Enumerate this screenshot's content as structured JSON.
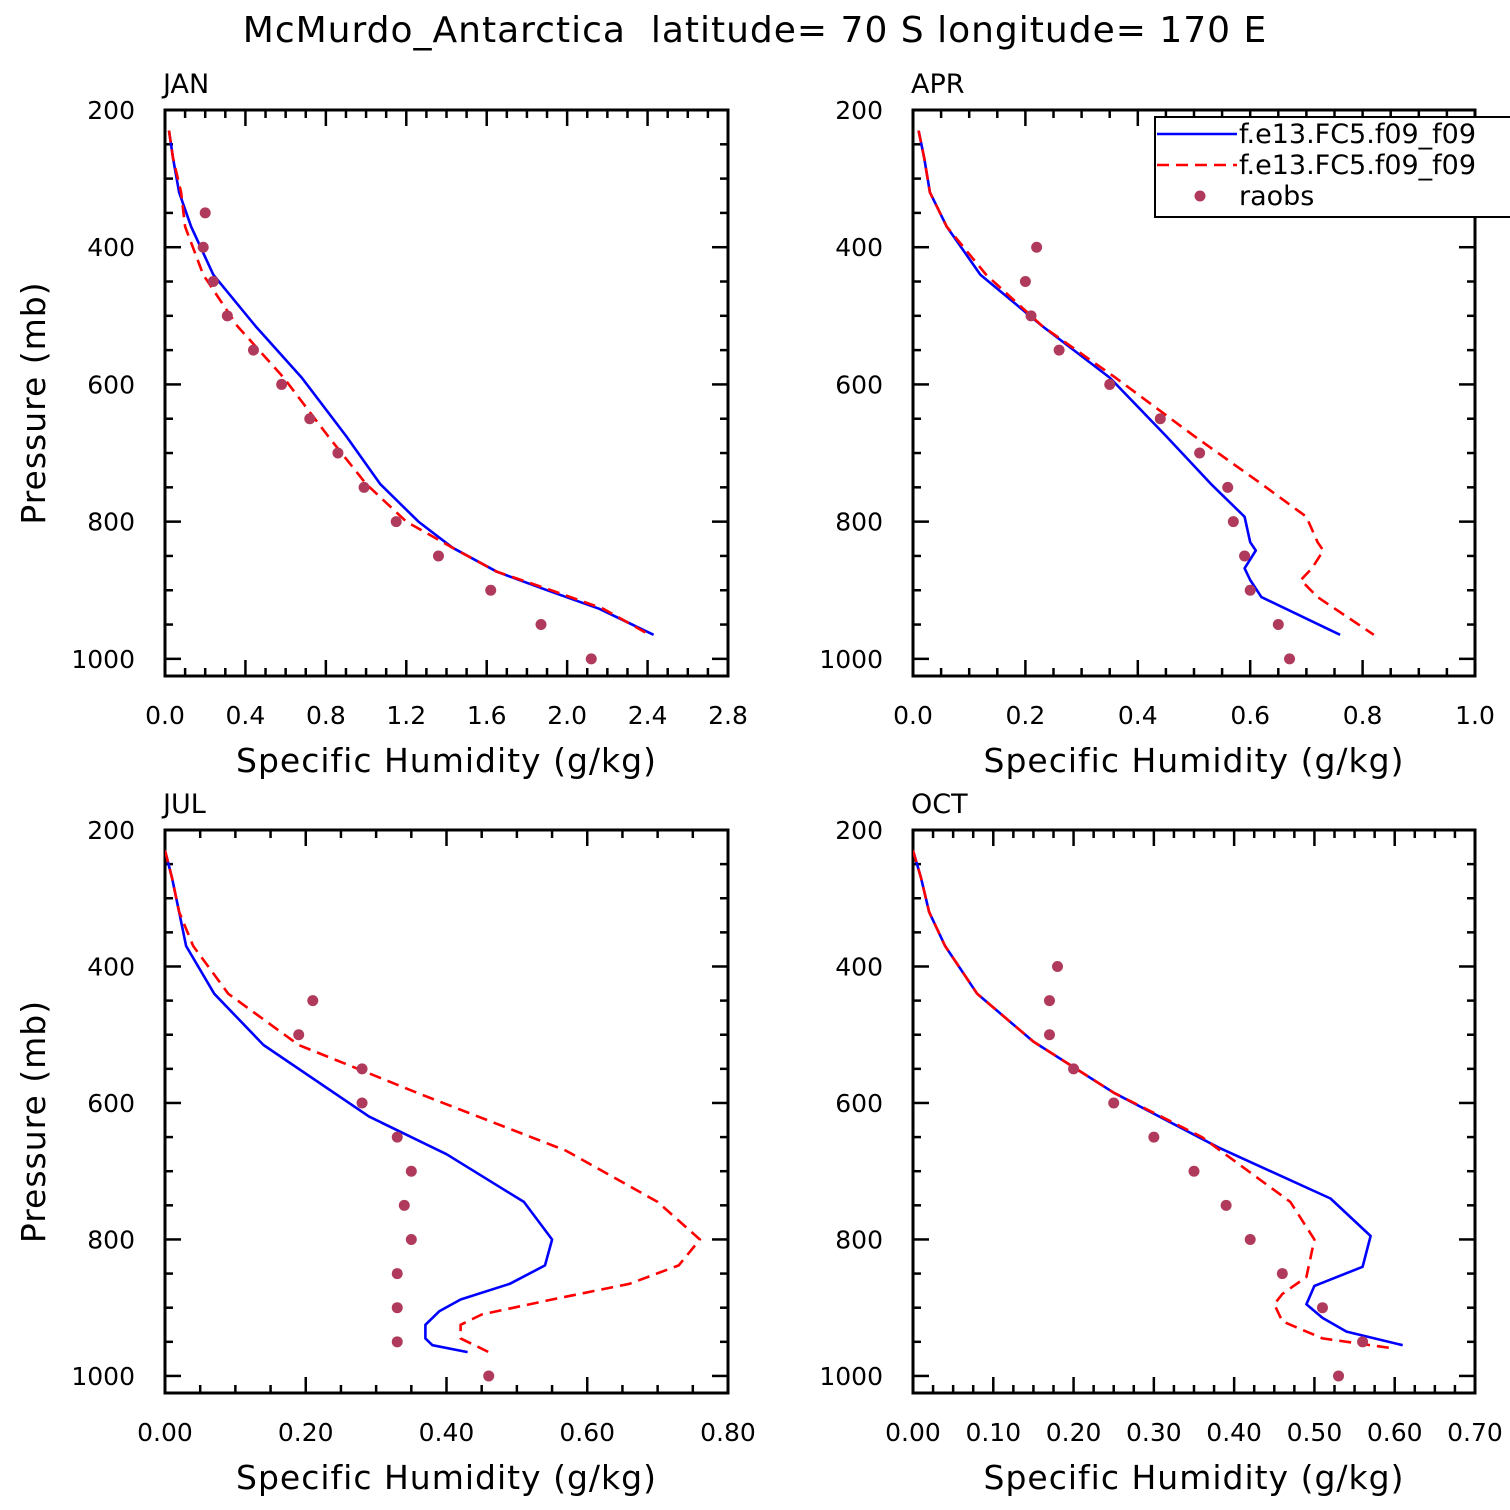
{
  "title": "McMurdo_Antarctica  latitude= 70 S longitude= 170 E",
  "legend": {
    "position": "top-right of APR panel",
    "entries": [
      {
        "label": "f.e13.FC5.f09_f09",
        "style": "solid",
        "color": "#0000ff"
      },
      {
        "label": "f.e13.FC5.f09_f09",
        "style": "dashed",
        "color": "#ff0000"
      },
      {
        "label": "raobs",
        "style": "dots",
        "color": "#b03a5b"
      }
    ]
  },
  "chart_data": [
    {
      "type": "line",
      "title": "JAN",
      "xlabel": "Specific Humidity (g/kg)",
      "ylabel": "Pressure (mb)",
      "xlim": [
        0,
        2.8
      ],
      "ylim": [
        1000,
        200
      ],
      "xticks": [
        "0.0",
        "0.4",
        "0.8",
        "1.2",
        "1.6",
        "2.0",
        "2.4",
        "2.8"
      ],
      "yticks": [
        "200",
        "400",
        "600",
        "800",
        "1000"
      ],
      "series": [
        {
          "name": "f.e13.FC5.f09_f09",
          "color": "#0000ff",
          "dash": false,
          "points": [
            [
              0.02,
              230
            ],
            [
              0.04,
              270
            ],
            [
              0.07,
              320
            ],
            [
              0.13,
              370
            ],
            [
              0.24,
              440
            ],
            [
              0.45,
              515
            ],
            [
              0.68,
              590
            ],
            [
              0.9,
              675
            ],
            [
              1.07,
              745
            ],
            [
              1.26,
              800
            ],
            [
              1.43,
              838
            ],
            [
              1.65,
              873
            ],
            [
              1.9,
              900
            ],
            [
              2.16,
              927
            ],
            [
              2.43,
              965
            ]
          ]
        },
        {
          "name": "f.e13.FC5.f09_f09",
          "color": "#ff0000",
          "dash": true,
          "points": [
            [
              0.02,
              230
            ],
            [
              0.04,
              270
            ],
            [
              0.08,
              320
            ],
            [
              0.1,
              370
            ],
            [
              0.19,
              440
            ],
            [
              0.36,
              515
            ],
            [
              0.59,
              590
            ],
            [
              0.81,
              675
            ],
            [
              1.0,
              745
            ],
            [
              1.2,
              800
            ],
            [
              1.43,
              838
            ],
            [
              1.65,
              873
            ],
            [
              1.92,
              900
            ],
            [
              2.18,
              927
            ],
            [
              2.41,
              965
            ]
          ]
        },
        {
          "name": "raobs",
          "color": "#b03a5b",
          "marker": "dot",
          "points": [
            [
              0.2,
              350
            ],
            [
              0.19,
              400
            ],
            [
              0.24,
              450
            ],
            [
              0.31,
              500
            ],
            [
              0.44,
              550
            ],
            [
              0.58,
              600
            ],
            [
              0.72,
              650
            ],
            [
              0.86,
              700
            ],
            [
              0.99,
              750
            ],
            [
              1.15,
              800
            ],
            [
              1.36,
              850
            ],
            [
              1.62,
              900
            ],
            [
              1.87,
              950
            ],
            [
              2.12,
              1000
            ]
          ]
        }
      ]
    },
    {
      "type": "line",
      "title": "APR",
      "xlabel": "Specific Humidity (g/kg)",
      "ylabel": "",
      "xlim": [
        0,
        1.0
      ],
      "ylim": [
        1000,
        200
      ],
      "xticks": [
        "0.0",
        "0.2",
        "0.4",
        "0.6",
        "0.8",
        "1.0"
      ],
      "yticks": [
        "200",
        "400",
        "600",
        "800",
        "1000"
      ],
      "series": [
        {
          "name": "f.e13.FC5.f09_f09",
          "color": "#0000ff",
          "dash": false,
          "points": [
            [
              0.01,
              230
            ],
            [
              0.02,
              270
            ],
            [
              0.03,
              320
            ],
            [
              0.06,
              370
            ],
            [
              0.12,
              440
            ],
            [
              0.23,
              515
            ],
            [
              0.35,
              590
            ],
            [
              0.45,
              675
            ],
            [
              0.53,
              745
            ],
            [
              0.59,
              793
            ],
            [
              0.6,
              830
            ],
            [
              0.61,
              842
            ],
            [
              0.59,
              868
            ],
            [
              0.6,
              885
            ],
            [
              0.62,
              910
            ],
            [
              0.76,
              965
            ]
          ]
        },
        {
          "name": "f.e13.FC5.f09_f09",
          "color": "#ff0000",
          "dash": true,
          "points": [
            [
              0.01,
              230
            ],
            [
              0.02,
              270
            ],
            [
              0.03,
              320
            ],
            [
              0.06,
              370
            ],
            [
              0.13,
              440
            ],
            [
              0.23,
              515
            ],
            [
              0.36,
              590
            ],
            [
              0.5,
              675
            ],
            [
              0.62,
              745
            ],
            [
              0.7,
              793
            ],
            [
              0.72,
              830
            ],
            [
              0.73,
              842
            ],
            [
              0.71,
              868
            ],
            [
              0.69,
              885
            ],
            [
              0.72,
              910
            ],
            [
              0.82,
              965
            ]
          ]
        },
        {
          "name": "raobs",
          "color": "#b03a5b",
          "marker": "dot",
          "points": [
            [
              0.22,
              400
            ],
            [
              0.2,
              450
            ],
            [
              0.21,
              500
            ],
            [
              0.26,
              550
            ],
            [
              0.35,
              600
            ],
            [
              0.44,
              650
            ],
            [
              0.51,
              700
            ],
            [
              0.56,
              750
            ],
            [
              0.57,
              800
            ],
            [
              0.59,
              850
            ],
            [
              0.6,
              900
            ],
            [
              0.65,
              950
            ],
            [
              0.67,
              1000
            ]
          ]
        }
      ]
    },
    {
      "type": "line",
      "title": "JUL",
      "xlabel": "Specific Humidity (g/kg)",
      "ylabel": "Pressure (mb)",
      "xlim": [
        0,
        0.8
      ],
      "ylim": [
        1000,
        200
      ],
      "xticks": [
        "0.00",
        "0.20",
        "0.40",
        "0.60",
        "0.80"
      ],
      "yticks": [
        "200",
        "400",
        "600",
        "800",
        "1000"
      ],
      "series": [
        {
          "name": "f.e13.FC5.f09_f09",
          "color": "#0000ff",
          "dash": false,
          "points": [
            [
              0.0,
              230
            ],
            [
              0.01,
              270
            ],
            [
              0.02,
              320
            ],
            [
              0.03,
              370
            ],
            [
              0.07,
              440
            ],
            [
              0.14,
              515
            ],
            [
              0.29,
              620
            ],
            [
              0.4,
              675
            ],
            [
              0.51,
              745
            ],
            [
              0.55,
              800
            ],
            [
              0.54,
              838
            ],
            [
              0.49,
              865
            ],
            [
              0.42,
              888
            ],
            [
              0.39,
              905
            ],
            [
              0.37,
              925
            ],
            [
              0.37,
              945
            ],
            [
              0.38,
              955
            ],
            [
              0.43,
              965
            ]
          ]
        },
        {
          "name": "f.e13.FC5.f09_f09",
          "color": "#ff0000",
          "dash": true,
          "points": [
            [
              0.0,
              230
            ],
            [
              0.01,
              270
            ],
            [
              0.02,
              320
            ],
            [
              0.04,
              370
            ],
            [
              0.09,
              440
            ],
            [
              0.19,
              515
            ],
            [
              0.37,
              590
            ],
            [
              0.57,
              670
            ],
            [
              0.7,
              745
            ],
            [
              0.76,
              800
            ],
            [
              0.73,
              838
            ],
            [
              0.66,
              865
            ],
            [
              0.55,
              888
            ],
            [
              0.45,
              910
            ],
            [
              0.42,
              925
            ],
            [
              0.42,
              945
            ],
            [
              0.46,
              965
            ]
          ]
        },
        {
          "name": "raobs",
          "color": "#b03a5b",
          "marker": "dot",
          "points": [
            [
              0.21,
              450
            ],
            [
              0.19,
              500
            ],
            [
              0.28,
              550
            ],
            [
              0.28,
              600
            ],
            [
              0.33,
              650
            ],
            [
              0.35,
              700
            ],
            [
              0.34,
              750
            ],
            [
              0.35,
              800
            ],
            [
              0.33,
              850
            ],
            [
              0.33,
              900
            ],
            [
              0.33,
              950
            ],
            [
              0.46,
              1000
            ]
          ]
        }
      ]
    },
    {
      "type": "line",
      "title": "OCT",
      "xlabel": "Specific Humidity (g/kg)",
      "ylabel": "",
      "xlim": [
        0,
        0.7
      ],
      "ylim": [
        1000,
        200
      ],
      "xticks": [
        "0.00",
        "0.10",
        "0.20",
        "0.30",
        "0.40",
        "0.50",
        "0.60",
        "0.70"
      ],
      "yticks": [
        "200",
        "400",
        "600",
        "800",
        "1000"
      ],
      "series": [
        {
          "name": "f.e13.FC5.f09_f09",
          "color": "#0000ff",
          "dash": false,
          "points": [
            [
              0.0,
              230
            ],
            [
              0.01,
              270
            ],
            [
              0.02,
              320
            ],
            [
              0.04,
              370
            ],
            [
              0.08,
              440
            ],
            [
              0.15,
              510
            ],
            [
              0.25,
              585
            ],
            [
              0.38,
              665
            ],
            [
              0.52,
              740
            ],
            [
              0.57,
              795
            ],
            [
              0.56,
              840
            ],
            [
              0.5,
              868
            ],
            [
              0.49,
              895
            ],
            [
              0.51,
              915
            ],
            [
              0.54,
              935
            ],
            [
              0.61,
              955
            ]
          ]
        },
        {
          "name": "f.e13.FC5.f09_f09",
          "color": "#ff0000",
          "dash": true,
          "points": [
            [
              0.0,
              230
            ],
            [
              0.01,
              270
            ],
            [
              0.02,
              320
            ],
            [
              0.04,
              370
            ],
            [
              0.08,
              440
            ],
            [
              0.15,
              510
            ],
            [
              0.25,
              585
            ],
            [
              0.36,
              650
            ],
            [
              0.47,
              745
            ],
            [
              0.5,
              800
            ],
            [
              0.49,
              855
            ],
            [
              0.46,
              880
            ],
            [
              0.45,
              895
            ],
            [
              0.46,
              920
            ],
            [
              0.51,
              945
            ],
            [
              0.6,
              960
            ]
          ]
        },
        {
          "name": "raobs",
          "color": "#b03a5b",
          "marker": "dot",
          "points": [
            [
              0.18,
              400
            ],
            [
              0.17,
              450
            ],
            [
              0.17,
              500
            ],
            [
              0.2,
              550
            ],
            [
              0.25,
              600
            ],
            [
              0.3,
              650
            ],
            [
              0.35,
              700
            ],
            [
              0.39,
              750
            ],
            [
              0.42,
              800
            ],
            [
              0.46,
              850
            ],
            [
              0.51,
              900
            ],
            [
              0.56,
              950
            ],
            [
              0.53,
              1000
            ]
          ]
        }
      ]
    }
  ]
}
